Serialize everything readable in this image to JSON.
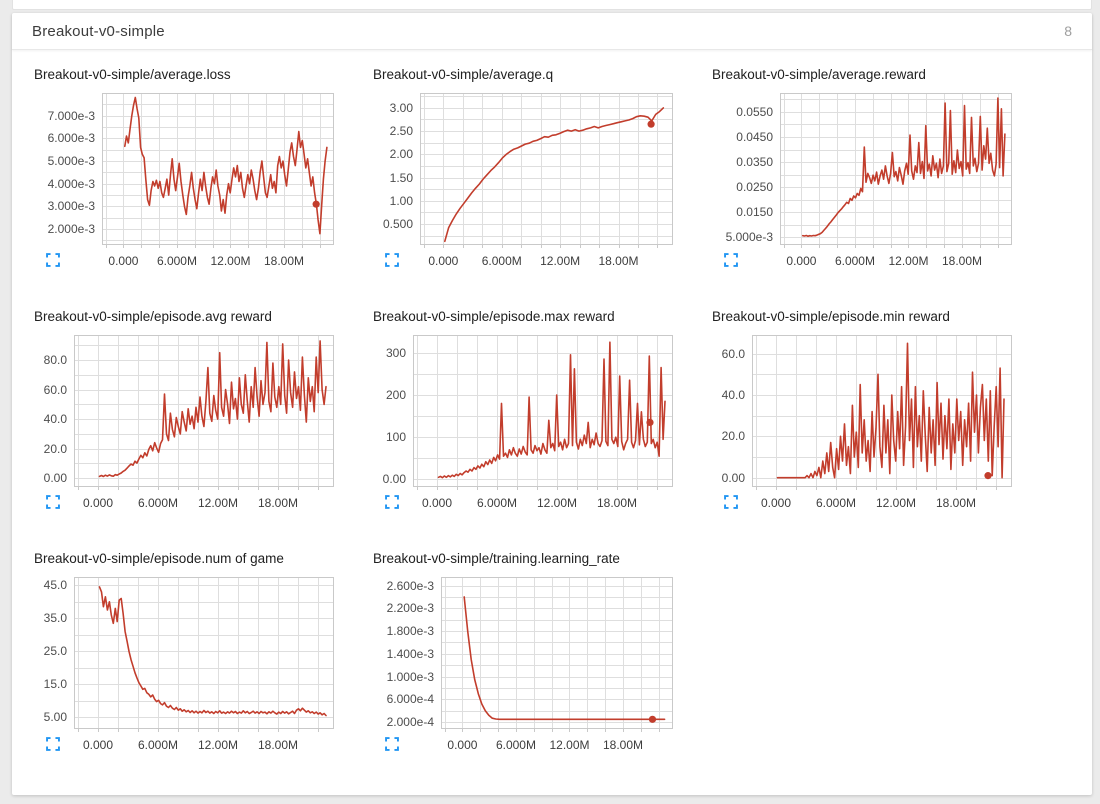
{
  "header": {
    "title": "Breakout-v0-simple",
    "count": "8"
  },
  "colors": {
    "line": "#c23d2c",
    "expand_icon": "#2196f3",
    "grid": "#dedede",
    "plot_border": "#c9c9c9",
    "plot_bg": "#ffffff"
  },
  "icons": {
    "expand": "fullscreen-icon"
  },
  "chart_data": {
    "shared_x_axis": {
      "xlim": [
        -2.4,
        23.6
      ],
      "unit": "steps (millions)",
      "grid_step": 2,
      "ticks": [
        {
          "v": 0,
          "label": "0.000"
        },
        {
          "v": 6,
          "label": "6.000M"
        },
        {
          "v": 12,
          "label": "12.00M"
        },
        {
          "v": 18,
          "label": "18.00M"
        }
      ]
    },
    "charts": [
      {
        "type": "line",
        "title": "Breakout-v0-simple/average.loss",
        "y_scale": 0.001,
        "ylim": [
          1.3,
          8.0
        ],
        "ygrid": 0.5,
        "yticks": [
          {
            "v": 7,
            "label": "7.000e-3"
          },
          {
            "v": 6,
            "label": "6.000e-3"
          },
          {
            "v": 5,
            "label": "5.000e-3"
          },
          {
            "v": 4,
            "label": "4.000e-3"
          },
          {
            "v": 3,
            "label": "3.000e-3"
          },
          {
            "v": 2,
            "label": "2.000e-3"
          }
        ],
        "x0": 0.15,
        "dx": 0.197,
        "y": [
          5.65,
          6.1,
          5.8,
          6.4,
          7.0,
          7.45,
          7.8,
          7.3,
          6.9,
          5.6,
          5.3,
          5.15,
          4.2,
          3.3,
          3.05,
          3.7,
          4.1,
          3.9,
          4.15,
          3.8,
          4.1,
          3.6,
          3.4,
          3.8,
          4.2,
          3.5,
          4.4,
          5.1,
          4.2,
          3.7,
          4.3,
          4.9,
          4.1,
          3.5,
          3.0,
          2.65,
          3.4,
          3.9,
          4.5,
          3.8,
          3.3,
          2.9,
          3.6,
          4.2,
          3.7,
          4.5,
          3.9,
          3.4,
          3.1,
          3.8,
          4.3,
          4.0,
          4.6,
          3.9,
          3.5,
          2.8,
          3.3,
          2.7,
          3.5,
          4.0,
          3.6,
          4.2,
          4.7,
          4.3,
          4.8,
          4.1,
          4.5,
          3.8,
          3.4,
          3.9,
          4.4,
          4.0,
          4.6,
          4.2,
          3.7,
          3.3,
          3.8,
          4.5,
          5.0,
          4.3,
          3.6,
          3.4,
          3.9,
          4.4,
          3.8,
          4.1,
          3.6,
          4.8,
          5.2,
          4.7,
          5.0,
          4.4,
          3.9,
          4.6,
          5.4,
          5.8,
          5.2,
          4.8,
          5.5,
          6.3,
          5.6,
          5.9,
          5.3,
          4.7,
          5.1,
          4.5,
          3.9,
          4.3,
          3.6,
          3.1,
          2.4,
          1.8,
          3.0,
          4.2,
          5.0,
          5.6
        ],
        "dot": {
          "x": 21.6,
          "y": 3.1
        }
      },
      {
        "type": "line",
        "title": "Breakout-v0-simple/average.q",
        "y_scale": 1,
        "ylim": [
          0.05,
          3.32
        ],
        "ygrid": 0.25,
        "yticks": [
          {
            "v": 3.0,
            "label": "3.00"
          },
          {
            "v": 2.5,
            "label": "2.50"
          },
          {
            "v": 2.0,
            "label": "2.00"
          },
          {
            "v": 1.5,
            "label": "1.50"
          },
          {
            "v": 1.0,
            "label": "1.00"
          },
          {
            "v": 0.5,
            "label": "0.500"
          }
        ],
        "x0": 0.15,
        "dx": 0.394,
        "y": [
          0.13,
          0.42,
          0.58,
          0.72,
          0.84,
          0.95,
          1.06,
          1.17,
          1.27,
          1.36,
          1.47,
          1.56,
          1.65,
          1.73,
          1.82,
          1.92,
          2.0,
          2.06,
          2.11,
          2.14,
          2.18,
          2.22,
          2.24,
          2.28,
          2.3,
          2.34,
          2.38,
          2.37,
          2.41,
          2.42,
          2.45,
          2.49,
          2.52,
          2.5,
          2.53,
          2.5,
          2.52,
          2.55,
          2.57,
          2.6,
          2.57,
          2.6,
          2.62,
          2.64,
          2.66,
          2.68,
          2.7,
          2.72,
          2.74,
          2.77,
          2.81,
          2.83,
          2.82,
          2.8,
          2.72,
          2.86,
          2.92,
          3.0
        ],
        "dot": {
          "x": 21.35,
          "y": 2.65
        }
      },
      {
        "type": "line",
        "title": "Breakout-v0-simple/average.reward",
        "y_scale": 0.001,
        "ylim": [
          2,
          62.5
        ],
        "ygrid": 5,
        "yticks": [
          {
            "v": 55,
            "label": "0.0550"
          },
          {
            "v": 45,
            "label": "0.0450"
          },
          {
            "v": 35,
            "label": "0.0350"
          },
          {
            "v": 25,
            "label": "0.0250"
          },
          {
            "v": 15,
            "label": "0.0150"
          },
          {
            "v": 5,
            "label": "5.000e-3"
          }
        ],
        "x0": 0.15,
        "dx": 0.197,
        "y": [
          5.7,
          5.6,
          5.8,
          5.5,
          5.7,
          5.6,
          5.8,
          5.7,
          5.9,
          6.2,
          6.5,
          7.0,
          7.8,
          8.6,
          9.5,
          10.4,
          11.2,
          12.1,
          13.0,
          13.9,
          14.8,
          15.6,
          16.3,
          17.2,
          18.0,
          19.0,
          18.5,
          20.5,
          19.8,
          21.5,
          20.8,
          22.5,
          21.8,
          24.5,
          23.2,
          41.0,
          27.0,
          30.5,
          28.8,
          26.5,
          29.8,
          27.5,
          31.0,
          26.2,
          29.5,
          31.8,
          28.2,
          33.5,
          29.5,
          26.5,
          30.5,
          38.8,
          29.2,
          31.2,
          27.5,
          32.8,
          29.8,
          26.2,
          31.5,
          34.5,
          30.2,
          45.8,
          31.5,
          28.2,
          33.5,
          30.8,
          42.8,
          30.5,
          35.2,
          28.5,
          49.5,
          31.5,
          34.2,
          29.5,
          37.5,
          31.8,
          34.5,
          28.8,
          36.2,
          30.5,
          33.5,
          58.5,
          31.2,
          34.5,
          55.5,
          30.2,
          35.5,
          30.8,
          39.8,
          32.5,
          35.2,
          29.5,
          57.5,
          32.2,
          34.8,
          30.5,
          52.8,
          33.5,
          36.5,
          31.2,
          34.5,
          53.2,
          31.8,
          41.5,
          36.2,
          48.5,
          34.5,
          38.5,
          31.8,
          29.5,
          34.2,
          60.5,
          32.8,
          56.2,
          29.5,
          46.2
        ],
        "dot": null
      },
      {
        "type": "line",
        "title": "Breakout-v0-simple/episode.avg reward",
        "y_scale": 1,
        "ylim": [
          -6,
          97
        ],
        "ygrid": 10,
        "yticks": [
          {
            "v": 80,
            "label": "80.0"
          },
          {
            "v": 60,
            "label": "60.0"
          },
          {
            "v": 40,
            "label": "40.0"
          },
          {
            "v": 20,
            "label": "20.0"
          },
          {
            "v": 0,
            "label": "0.00"
          }
        ],
        "x0": 0.15,
        "dx": 0.197,
        "y": [
          1.2,
          1.8,
          1.1,
          2.0,
          1.4,
          2.2,
          1.6,
          1.3,
          2.4,
          2.0,
          2.8,
          3.5,
          4.6,
          5.4,
          6.8,
          8.2,
          9.5,
          8.8,
          11.5,
          10.2,
          13.0,
          15.5,
          13.8,
          17.2,
          15.0,
          19.5,
          22.0,
          18.5,
          24.0,
          20.5,
          17.5,
          23.5,
          26.0,
          57.0,
          30.0,
          25.5,
          44.0,
          33.0,
          28.0,
          41.0,
          35.0,
          30.0,
          45.0,
          38.0,
          32.0,
          47.0,
          36.5,
          42.0,
          33.5,
          48.0,
          38.0,
          55.0,
          42.0,
          35.0,
          52.0,
          75.0,
          44.0,
          38.5,
          56.0,
          46.0,
          40.0,
          85.0,
          48.0,
          42.0,
          60.0,
          50.0,
          37.0,
          65.0,
          47.0,
          54.0,
          40.0,
          68.0,
          50.0,
          44.0,
          70.0,
          52.0,
          38.0,
          62.0,
          48.0,
          75.0,
          55.0,
          42.0,
          66.0,
          50.0,
          58.0,
          92.0,
          52.0,
          45.0,
          78.0,
          55.0,
          48.0,
          62.0,
          50.0,
          91.0,
          56.0,
          44.0,
          80.0,
          58.0,
          48.0,
          72.0,
          54.0,
          62.0,
          46.0,
          82.0,
          56.0,
          38.0,
          68.0,
          52.0,
          62.0,
          45.0,
          82.0,
          58.0,
          93.0,
          60.0,
          50.0,
          62.0
        ],
        "dot": null
      },
      {
        "type": "line",
        "title": "Breakout-v0-simple/episode.max reward",
        "y_scale": 1,
        "ylim": [
          -18,
          342
        ],
        "ygrid": 50,
        "yticks": [
          {
            "v": 300,
            "label": "300"
          },
          {
            "v": 200,
            "label": "200"
          },
          {
            "v": 100,
            "label": "100"
          },
          {
            "v": 0,
            "label": "0.00"
          }
        ],
        "x0": 0.15,
        "dx": 0.197,
        "y": [
          5,
          7,
          4,
          8,
          5,
          9,
          6,
          10,
          7,
          12,
          9,
          14,
          11,
          16,
          20,
          17,
          24,
          20,
          28,
          24,
          32,
          27,
          36,
          30,
          42,
          35,
          46,
          38,
          52,
          44,
          58,
          48,
          180,
          55,
          62,
          52,
          70,
          58,
          75,
          62,
          55,
          72,
          60,
          78,
          65,
          58,
          195,
          70,
          62,
          80,
          68,
          75,
          60,
          85,
          70,
          62,
          140,
          75,
          85,
          68,
          200,
          78,
          88,
          70,
          95,
          75,
          85,
          295,
          80,
          262,
          88,
          72,
          95,
          80,
          105,
          85,
          135,
          75,
          95,
          82,
          110,
          85,
          78,
          92,
          285,
          90,
          80,
          325,
          95,
          85,
          100,
          78,
          245,
          90,
          70,
          85,
          95,
          235,
          88,
          75,
          92,
          180,
          82,
          160,
          95,
          78,
          88,
          292,
          85,
          95,
          75,
          88,
          55,
          265,
          95,
          185
        ],
        "dot": {
          "x": 21.3,
          "y": 135
        }
      },
      {
        "type": "line",
        "title": "Breakout-v0-simple/episode.min reward",
        "y_scale": 1,
        "ylim": [
          -4.5,
          69
        ],
        "ygrid": 10,
        "yticks": [
          {
            "v": 60,
            "label": "60.0"
          },
          {
            "v": 40,
            "label": "40.0"
          },
          {
            "v": 20,
            "label": "20.0"
          },
          {
            "v": 0,
            "label": "0.00"
          }
        ],
        "x0": 0.15,
        "dx": 0.197,
        "y": [
          0,
          0,
          0,
          0,
          0,
          0,
          0,
          0,
          0,
          0,
          0,
          0,
          0,
          0,
          0,
          1,
          0,
          2,
          0,
          3,
          1,
          5,
          0,
          8,
          2,
          12,
          3,
          17,
          5,
          0,
          14,
          4,
          20,
          8,
          26,
          6,
          15,
          2,
          35,
          10,
          22,
          5,
          45,
          12,
          28,
          8,
          18,
          3,
          32,
          10,
          24,
          50,
          15,
          5,
          35,
          12,
          28,
          2,
          40,
          18,
          8,
          32,
          14,
          44,
          6,
          25,
          65,
          18,
          38,
          5,
          44,
          15,
          30,
          8,
          42,
          20,
          3,
          34,
          12,
          28,
          6,
          46,
          16,
          36,
          9,
          30,
          14,
          38,
          4,
          26,
          12,
          38,
          18,
          32,
          6,
          28,
          15,
          36,
          8,
          51,
          22,
          40,
          12,
          34,
          45,
          18,
          38,
          8,
          42,
          1,
          25,
          44,
          15,
          53,
          0,
          38
        ],
        "dot": {
          "x": 21.2,
          "y": 1
        }
      },
      {
        "type": "line",
        "title": "Breakout-v0-simple/episode.num of game",
        "y_scale": 1,
        "ylim": [
          1.5,
          47.5
        ],
        "ygrid": 5,
        "yticks": [
          {
            "v": 45,
            "label": "45.0"
          },
          {
            "v": 35,
            "label": "35.0"
          },
          {
            "v": 25,
            "label": "25.0"
          },
          {
            "v": 15,
            "label": "15.0"
          },
          {
            "v": 5,
            "label": "5.00"
          }
        ],
        "x0": 0.15,
        "dx": 0.197,
        "y": [
          44.5,
          43.0,
          38.5,
          41.5,
          37.5,
          40.0,
          36.0,
          33.5,
          38.0,
          34.0,
          40.5,
          41.0,
          36.5,
          31.0,
          28.0,
          25.0,
          22.5,
          20.5,
          18.5,
          17.0,
          15.5,
          14.5,
          13.5,
          13.8,
          12.5,
          12.0,
          11.2,
          11.8,
          10.5,
          9.8,
          10.2,
          9.2,
          8.8,
          9.5,
          8.4,
          8.0,
          8.6,
          7.8,
          7.4,
          8.0,
          7.2,
          7.6,
          6.9,
          7.3,
          6.7,
          7.1,
          6.5,
          7.0,
          6.4,
          6.9,
          6.3,
          6.8,
          6.4,
          7.1,
          6.5,
          6.9,
          6.3,
          6.7,
          6.2,
          6.8,
          6.4,
          7.0,
          6.3,
          6.6,
          6.2,
          6.7,
          6.3,
          6.9,
          6.4,
          6.8,
          6.2,
          6.6,
          6.3,
          7.0,
          6.4,
          6.8,
          6.2,
          6.5,
          6.9,
          6.3,
          6.7,
          6.2,
          6.8,
          6.4,
          6.6,
          6.1,
          6.7,
          6.3,
          6.9,
          6.4,
          6.0,
          6.6,
          6.2,
          6.8,
          6.3,
          6.7,
          6.1,
          6.5,
          6.9,
          6.2,
          7.2,
          7.6,
          7.0,
          7.8,
          7.2,
          6.6,
          7.0,
          6.4,
          6.7,
          6.2,
          6.6,
          6.0,
          6.4,
          5.8,
          6.2,
          5.6
        ],
        "dot": null
      },
      {
        "type": "line",
        "title": "Breakout-v0-simple/training.learning_rate",
        "y_scale": 0.001,
        "ylim": [
          0.08,
          2.75
        ],
        "ygrid": 0.2,
        "yticks": [
          {
            "v": 2.6,
            "label": "2.600e-3"
          },
          {
            "v": 2.2,
            "label": "2.200e-3"
          },
          {
            "v": 1.8,
            "label": "1.800e-3"
          },
          {
            "v": 1.4,
            "label": "1.400e-3"
          },
          {
            "v": 1.0,
            "label": "1.000e-3"
          },
          {
            "v": 0.6,
            "label": "6.000e-4"
          },
          {
            "v": 0.2,
            "label": "2.000e-4"
          }
        ],
        "x0": 0.2,
        "dx": 0.394,
        "y": [
          2.4,
          1.8,
          1.3,
          0.95,
          0.7,
          0.52,
          0.4,
          0.32,
          0.27,
          0.255,
          0.25,
          0.25,
          0.25,
          0.25,
          0.25,
          0.25,
          0.25,
          0.25,
          0.25,
          0.25,
          0.25,
          0.25,
          0.25,
          0.25,
          0.25,
          0.25,
          0.25,
          0.25,
          0.25,
          0.25,
          0.25,
          0.25,
          0.25,
          0.25,
          0.25,
          0.25,
          0.25,
          0.25,
          0.25,
          0.25,
          0.25,
          0.25,
          0.25,
          0.25,
          0.25,
          0.25,
          0.25,
          0.25,
          0.25,
          0.25,
          0.25,
          0.25,
          0.25,
          0.25,
          0.25,
          0.25,
          0.25,
          0.25
        ],
        "dot": {
          "x": 21.3,
          "y": 0.25
        }
      }
    ]
  }
}
